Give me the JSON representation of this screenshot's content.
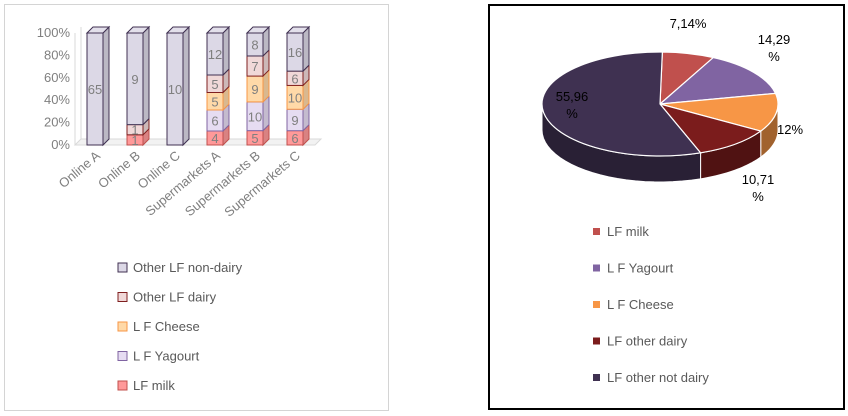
{
  "chart_data": [
    {
      "type": "bar",
      "stacked": "percent",
      "style": "3d-cylinder",
      "categories": [
        "Online A",
        "Online  B",
        "Online C",
        "Supermarkets A",
        "Supermarkets B",
        "Supermarkets C"
      ],
      "yticks": [
        "0%",
        "20%",
        "40%",
        "60%",
        "80%",
        "100%"
      ],
      "ylim": [
        0,
        100
      ],
      "legend_position": "bottom",
      "series": [
        {
          "name": "LF milk",
          "color": "#ff9999",
          "edge": "#c0504d",
          "values": [
            0,
            1,
            0,
            4,
            5,
            6
          ],
          "labels": [
            "",
            "1",
            "",
            "4",
            "5",
            "6"
          ]
        },
        {
          "name": "L F Yagourt",
          "color": "#e6dcf2",
          "edge": "#8064a2",
          "values": [
            0,
            0,
            0,
            6,
            10,
            9
          ],
          "labels": [
            "",
            "",
            "",
            "6",
            "10",
            "9"
          ]
        },
        {
          "name": "L F Cheese",
          "color": "#ffd9a8",
          "edge": "#f79646",
          "values": [
            0,
            0,
            0,
            5,
            9,
            10
          ],
          "labels": [
            "",
            "",
            "",
            "5",
            "9",
            "10"
          ]
        },
        {
          "name": "Other LF dairy",
          "color": "#f0d8d8",
          "edge": "#7f1f1f",
          "values": [
            0,
            1,
            0,
            5,
            7,
            6
          ],
          "labels": [
            "",
            "1",
            "",
            "5",
            "7",
            "6"
          ]
        },
        {
          "name": "Other LF non-dairy",
          "color": "#dcd8e6",
          "edge": "#403152",
          "values": [
            65,
            9,
            10,
            12,
            8,
            16
          ],
          "labels": [
            "65",
            "9",
            "10",
            "12",
            "8",
            "16"
          ]
        }
      ]
    },
    {
      "type": "pie",
      "style": "3d",
      "legend_position": "bottom",
      "slices": [
        {
          "name": "LF milk",
          "value": 7.14,
          "label": "7,14%",
          "color": "#c0504d"
        },
        {
          "name": "L F Yagourt",
          "value": 14.29,
          "label": "14,29\n%",
          "color": "#8064a2"
        },
        {
          "name": "L F Cheese",
          "value": 12,
          "label": "12%",
          "color": "#f79646"
        },
        {
          "name": "LF other dairy",
          "value": 10.71,
          "label": "10,71\n%",
          "color": "#7b1c1c"
        },
        {
          "name": "LF other  not dairy",
          "value": 55.96,
          "label": "55,96\n%",
          "color": "#3f3151"
        }
      ]
    }
  ]
}
